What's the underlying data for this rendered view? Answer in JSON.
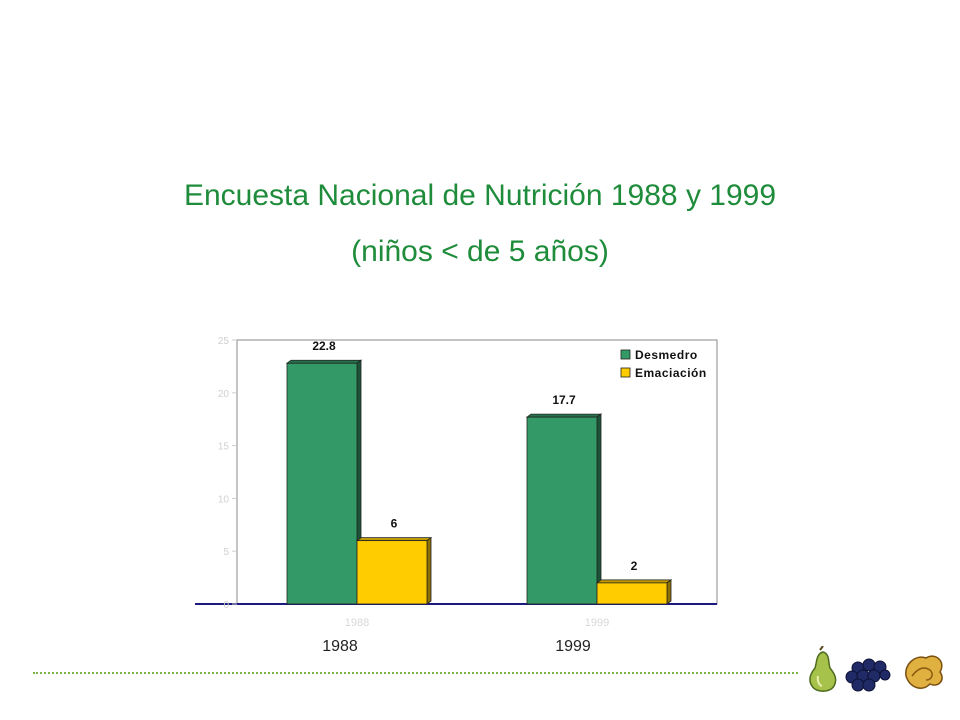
{
  "slide": {
    "title_line_1": "Encuesta Nacional de Nutrición 1988 y 1999",
    "title_line_2": "(niños < de 5 años)"
  },
  "year_labels": [
    "1988",
    "1999"
  ],
  "chart_data": {
    "type": "bar",
    "categories": [
      "1988",
      "1999"
    ],
    "series": [
      {
        "name": "Desmedro",
        "values": [
          22.8,
          17.7
        ],
        "color": "#339966"
      },
      {
        "name": "Emaciación",
        "values": [
          6,
          2
        ],
        "color": "#ffcc00"
      }
    ],
    "data_labels": [
      [
        "22.8",
        "17.7"
      ],
      [
        "6",
        "2"
      ]
    ],
    "ylim": [
      0,
      25
    ],
    "yticks": [
      0,
      5,
      10,
      15,
      20,
      25
    ],
    "legend_position": "top-right",
    "grid": false
  },
  "colors": {
    "title": "#1e8c3a",
    "rule": "#7ab648"
  },
  "icons": [
    "pear-icon",
    "grapes-icon",
    "dried-fruit-icon"
  ]
}
